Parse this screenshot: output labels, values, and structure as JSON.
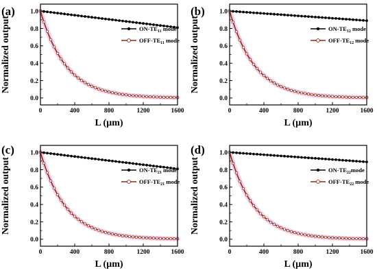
{
  "chart_data": [
    {
      "type": "line",
      "panel_label": "(a)",
      "xlabel": "L (µm)",
      "ylabel": "Normalized output",
      "xlim": [
        0,
        1600
      ],
      "ylim": [
        -0.08,
        1.08
      ],
      "x_ticks": [
        "0",
        "400",
        "800",
        "1200",
        "1600"
      ],
      "y_ticks": [
        "0.0",
        "0.2",
        "0.4",
        "0.6",
        "0.8",
        "1.0"
      ],
      "legend_position": "right",
      "series": [
        {
          "name": "ON-TE",
          "sub": "11",
          "suffix": " mode",
          "color": "#000000",
          "marker": "filled-circle",
          "on_end": 0.81
        },
        {
          "name": "OFF-TE",
          "sub": "11",
          "suffix": " mode",
          "color": "#8b2a12",
          "marker": "open-circle",
          "off_decay": 300
        }
      ]
    },
    {
      "type": "line",
      "panel_label": "(b)",
      "xlabel": "L (µm)",
      "ylabel": "Normalized output",
      "xlim": [
        0,
        1600
      ],
      "ylim": [
        -0.08,
        1.08
      ],
      "x_ticks": [
        "0",
        "400",
        "800",
        "1200",
        "1600"
      ],
      "y_ticks": [
        "0.0",
        "0.2",
        "0.4",
        "0.6",
        "0.8",
        "1.0"
      ],
      "legend_position": "right",
      "series": [
        {
          "name": "ON-TE",
          "sub": "12",
          "suffix": " mode",
          "color": "#000000",
          "marker": "filled-circle",
          "on_end": 0.89
        },
        {
          "name": "OFF-TE",
          "sub": "12",
          "suffix": " mode",
          "color": "#8b2a12",
          "marker": "open-circle",
          "off_decay": 295
        }
      ]
    },
    {
      "type": "line",
      "panel_label": "(c)",
      "xlabel": "L (µm)",
      "ylabel": "Normalized output",
      "xlim": [
        0,
        1600
      ],
      "ylim": [
        -0.08,
        1.08
      ],
      "x_ticks": [
        "0",
        "400",
        "800",
        "1200",
        "1600"
      ],
      "y_ticks": [
        "0.0",
        "0.2",
        "0.4",
        "0.6",
        "0.8",
        "1.0"
      ],
      "legend_position": "right",
      "series": [
        {
          "name": "ON-TE",
          "sub": "21",
          "suffix": " mode",
          "color": "#000000",
          "marker": "filled-circle",
          "on_end": 0.81
        },
        {
          "name": "OFF-TE",
          "sub": "21",
          "suffix": " mode",
          "color": "#8b2a12",
          "marker": "open-circle",
          "off_decay": 300
        }
      ]
    },
    {
      "type": "line",
      "panel_label": "(d)",
      "xlabel": "L (µm)",
      "ylabel": "Normalized output",
      "xlim": [
        0,
        1600
      ],
      "ylim": [
        -0.08,
        1.08
      ],
      "x_ticks": [
        "0",
        "400",
        "800",
        "1200",
        "1600"
      ],
      "y_ticks": [
        "0.0",
        "0.2",
        "0.4",
        "0.6",
        "0.8",
        "1.0"
      ],
      "legend_position": "right",
      "series": [
        {
          "name": "ON-TE",
          "sub": "22",
          "suffix": "mode",
          "color": "#000000",
          "marker": "filled-circle",
          "on_end": 0.89
        },
        {
          "name": "OFF-TE",
          "sub": "22",
          "suffix": " mode",
          "color": "#8b2a12",
          "marker": "open-circle",
          "off_decay": 295
        }
      ]
    }
  ]
}
